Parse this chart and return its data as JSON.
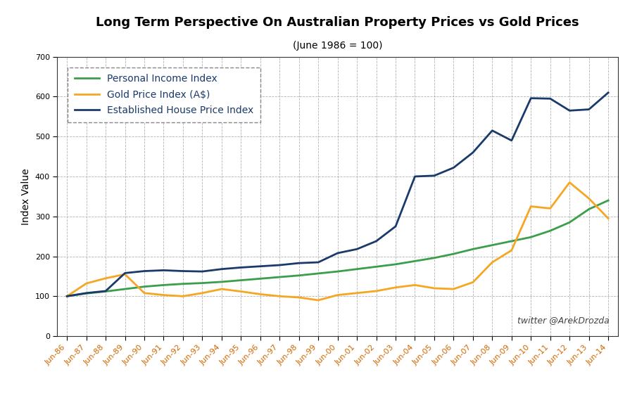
{
  "title": "Long Term Perspective On Australian Property Prices vs Gold Prices",
  "subtitle": "(June 1986 = 100)",
  "ylabel": "Index Value",
  "twitter": "twitter @ArekDrozda",
  "ylim": [
    0,
    700
  ],
  "yticks": [
    0,
    100,
    200,
    300,
    400,
    500,
    600,
    700
  ],
  "years": [
    "Jun-86",
    "Jun-87",
    "Jun-88",
    "Jun-89",
    "Jun-90",
    "Jun-91",
    "Jun-92",
    "Jun-93",
    "Jun-94",
    "Jun-95",
    "Jun-96",
    "Jun-97",
    "Jun-98",
    "Jun-99",
    "Jun-00",
    "Jun-01",
    "Jun-02",
    "Jun-03",
    "Jun-04",
    "Jun-05",
    "Jun-06",
    "Jun-07",
    "Jun-08",
    "Jun-09",
    "Jun-10",
    "Jun-11",
    "Jun-12",
    "Jun-13",
    "Jun-14"
  ],
  "personal_income": [
    100,
    107,
    112,
    118,
    124,
    128,
    131,
    133,
    136,
    140,
    144,
    148,
    152,
    157,
    162,
    168,
    174,
    180,
    188,
    196,
    206,
    218,
    228,
    238,
    248,
    264,
    285,
    318,
    340
  ],
  "gold_price": [
    100,
    132,
    145,
    155,
    108,
    103,
    100,
    108,
    118,
    112,
    105,
    100,
    97,
    90,
    103,
    108,
    113,
    122,
    128,
    120,
    118,
    135,
    185,
    215,
    325,
    320,
    385,
    345,
    295
  ],
  "house_price": [
    100,
    108,
    113,
    158,
    163,
    165,
    163,
    162,
    168,
    172,
    175,
    178,
    183,
    185,
    208,
    218,
    238,
    275,
    400,
    402,
    422,
    460,
    515,
    490,
    596,
    595,
    565,
    568,
    610
  ],
  "personal_income_color": "#3a9e4a",
  "gold_price_color": "#f5a623",
  "house_price_color": "#1a3a6b",
  "legend_text_color": "#1a3a6b",
  "background_color": "#ffffff",
  "grid_color": "#aaaaaa",
  "xtick_color": "#cc6600",
  "ytick_color": "#000000",
  "title_fontsize": 13,
  "subtitle_fontsize": 10,
  "axis_label_fontsize": 10,
  "tick_fontsize": 8,
  "legend_fontsize": 10,
  "linewidth": 2.0
}
